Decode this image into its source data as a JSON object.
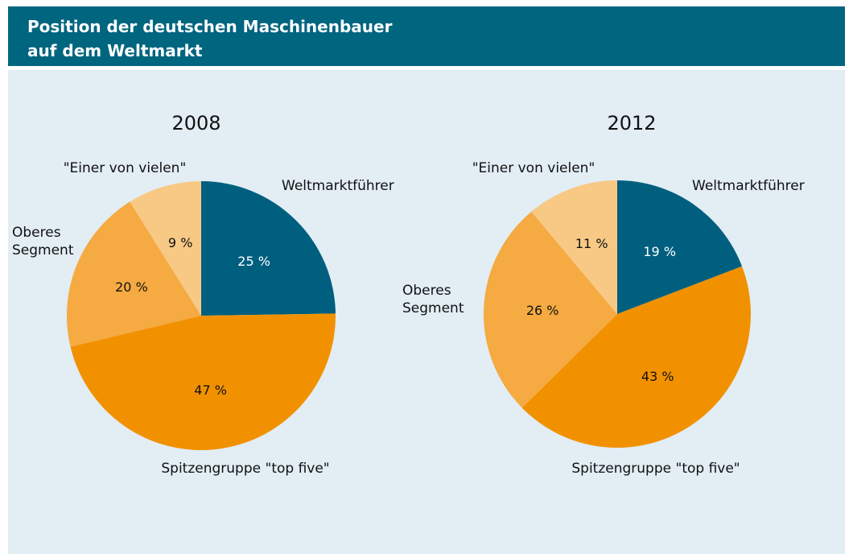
{
  "header": {
    "title": "Position der deutschen Maschinenbauer\nauf dem Weltmarkt"
  },
  "chart_data": [
    {
      "type": "pie",
      "title": "2008",
      "categories": [
        "Weltmarktführer",
        "Spitzengruppe \"top five\"",
        "Oberes\nSegment",
        "\"Einer von vielen\""
      ],
      "values": [
        25,
        47,
        20,
        9
      ],
      "value_labels": [
        "25 %",
        "47 %",
        "20 %",
        "9 %"
      ],
      "colors": [
        "#005f7f",
        "#f29100",
        "#f5aa42",
        "#f8c985"
      ]
    },
    {
      "type": "pie",
      "title": "2012",
      "categories": [
        "Weltmarktführer",
        "Spitzengruppe \"top five\"",
        "Oberes\nSegment",
        "\"Einer von vielen\""
      ],
      "values": [
        19,
        43,
        26,
        11
      ],
      "value_labels": [
        "19 %",
        "43 %",
        "26 %",
        "11 %"
      ],
      "colors": [
        "#005f7f",
        "#f29100",
        "#f5aa42",
        "#f8c985"
      ]
    }
  ]
}
